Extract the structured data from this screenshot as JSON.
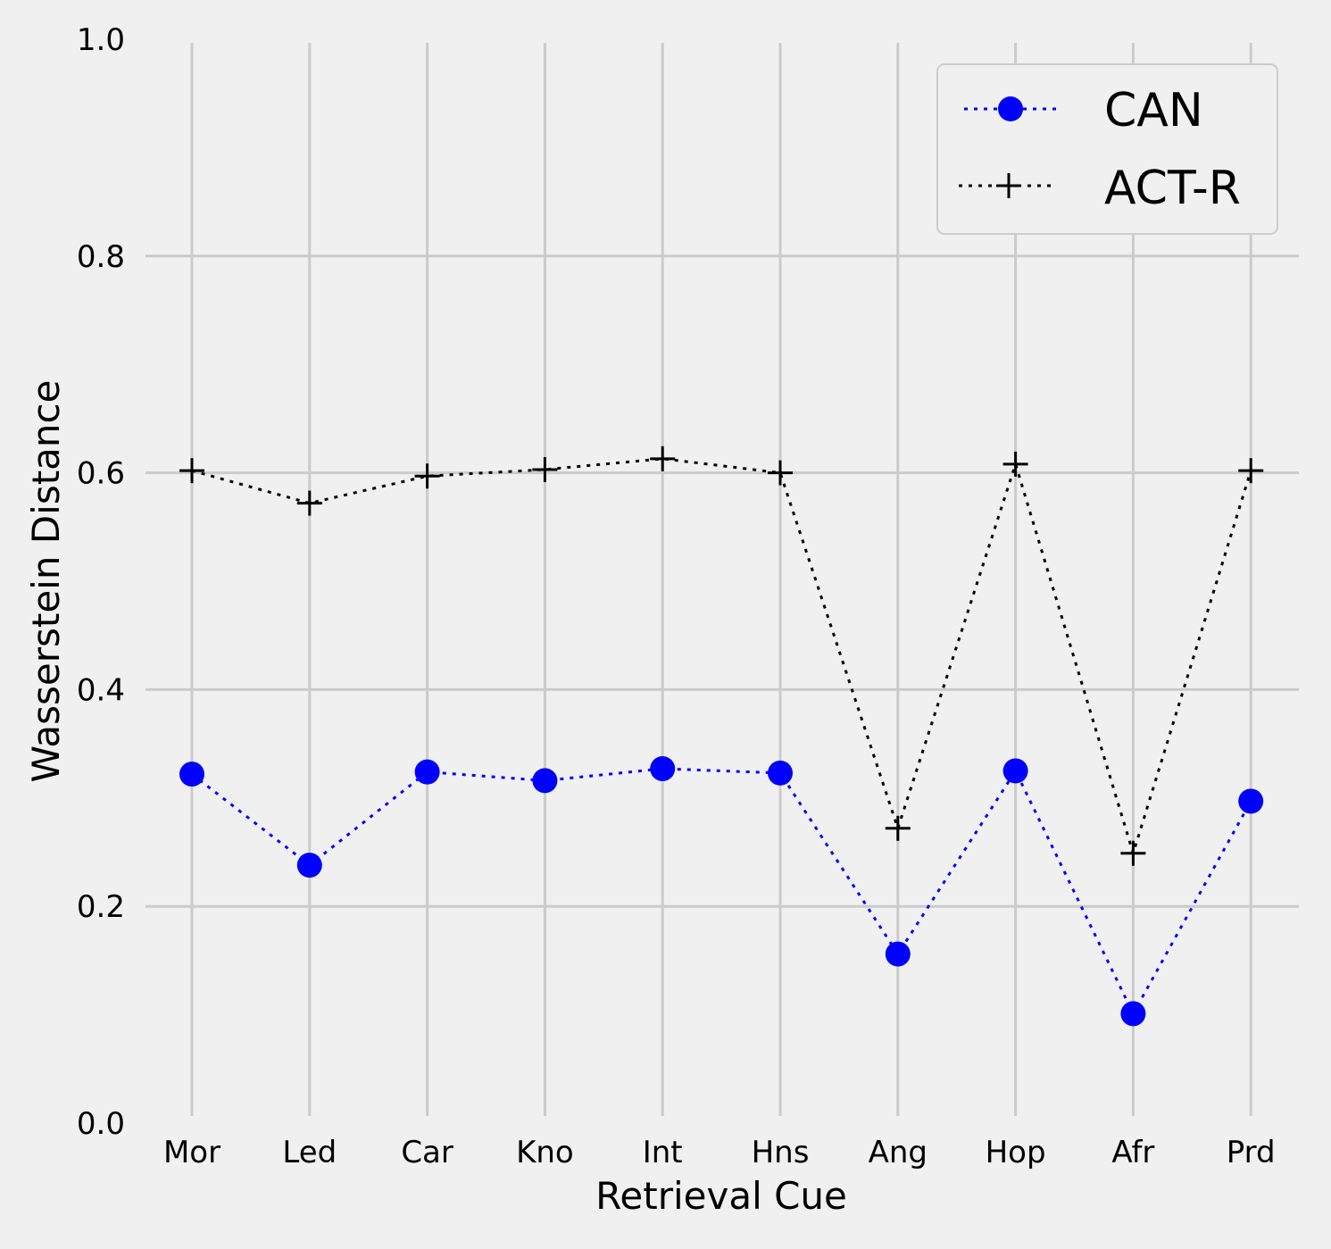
{
  "chart_data": {
    "type": "line",
    "title": "",
    "xlabel": "Retrieval Cue",
    "ylabel": "Wasserstein Distance",
    "categories": [
      "Mor",
      "Led",
      "Car",
      "Kno",
      "Int",
      "Hns",
      "Ang",
      "Hop",
      "Afr",
      "Prd"
    ],
    "ylim": [
      0.0,
      1.0
    ],
    "yticks": [
      "0.0",
      "0.2",
      "0.4",
      "0.6",
      "0.8",
      "1.0"
    ],
    "grid": true,
    "legend_position": "top-right",
    "series": [
      {
        "name": "CAN",
        "color": "#0000ff",
        "marker": "circle",
        "linestyle": "dotted",
        "values": [
          0.322,
          0.238,
          0.324,
          0.316,
          0.327,
          0.323,
          0.156,
          0.325,
          0.101,
          0.297
        ]
      },
      {
        "name": "ACT-R",
        "color": "#000000",
        "marker": "plus",
        "linestyle": "dotted",
        "values": [
          0.602,
          0.572,
          0.597,
          0.603,
          0.613,
          0.6,
          0.272,
          0.608,
          0.249,
          0.602
        ]
      }
    ]
  },
  "colors": {
    "background": "#f0f0f0",
    "grid": "#cbcbcb",
    "legend_border": "#cccccc"
  }
}
